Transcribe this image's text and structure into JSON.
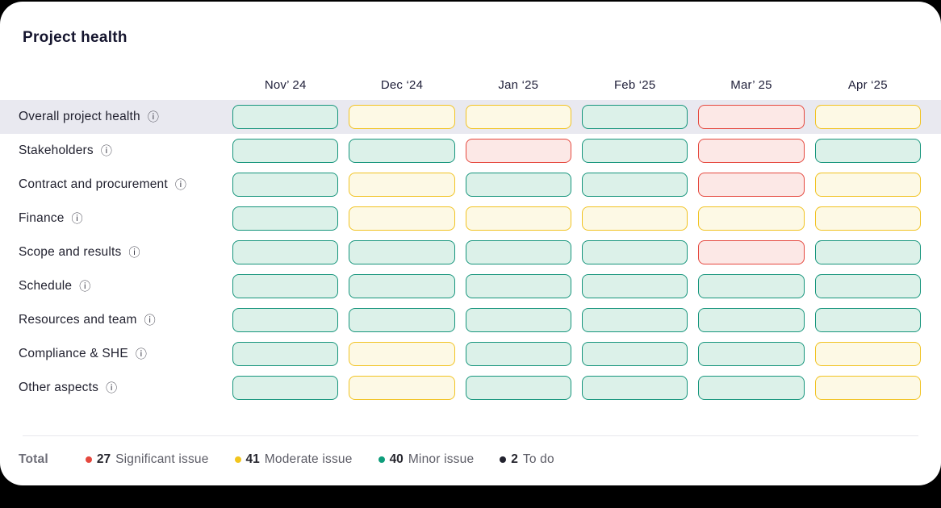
{
  "page": {
    "title": "Project health"
  },
  "columns": [
    "Nov’ 24",
    "Dec ‘24",
    "Jan ‘25",
    "Feb ‘25",
    "Mar’ 25",
    "Apr ‘25"
  ],
  "rows": [
    {
      "label": "Overall project health",
      "highlighted": true,
      "statuses": [
        "minor",
        "moderate",
        "moderate",
        "minor",
        "significant",
        "moderate"
      ]
    },
    {
      "label": "Stakeholders",
      "highlighted": false,
      "statuses": [
        "minor",
        "minor",
        "significant",
        "minor",
        "significant",
        "minor"
      ]
    },
    {
      "label": "Contract and procurement",
      "highlighted": false,
      "statuses": [
        "minor",
        "moderate",
        "minor",
        "minor",
        "significant",
        "moderate"
      ]
    },
    {
      "label": "Finance",
      "highlighted": false,
      "statuses": [
        "minor",
        "moderate",
        "moderate",
        "moderate",
        "moderate",
        "moderate"
      ]
    },
    {
      "label": "Scope and results",
      "highlighted": false,
      "statuses": [
        "minor",
        "minor",
        "minor",
        "minor",
        "significant",
        "minor"
      ]
    },
    {
      "label": "Schedule",
      "highlighted": false,
      "statuses": [
        "minor",
        "minor",
        "minor",
        "minor",
        "minor",
        "minor"
      ]
    },
    {
      "label": "Resources and team",
      "highlighted": false,
      "statuses": [
        "minor",
        "minor",
        "minor",
        "minor",
        "minor",
        "minor"
      ]
    },
    {
      "label": "Compliance & SHE",
      "highlighted": false,
      "statuses": [
        "minor",
        "moderate",
        "minor",
        "minor",
        "minor",
        "moderate"
      ]
    },
    {
      "label": "Other aspects",
      "highlighted": false,
      "statuses": [
        "minor",
        "moderate",
        "minor",
        "minor",
        "minor",
        "moderate"
      ]
    }
  ],
  "status_styles": {
    "minor": {
      "fill": "#dcf1e9",
      "border": "#16957c"
    },
    "moderate": {
      "fill": "#fdf9e5",
      "border": "#f1c322"
    },
    "significant": {
      "fill": "#fce8e6",
      "border": "#e5483e"
    },
    "todo": {
      "fill": "#eeeeee",
      "border": "#22222e"
    }
  },
  "info_icon_glyph": "ⓘ",
  "legend": {
    "total_label": "Total",
    "items": [
      {
        "count": "27",
        "label": "Significant  issue",
        "color": "#e5483e"
      },
      {
        "count": "41",
        "label": "Moderate issue",
        "color": "#f2c51d"
      },
      {
        "count": "40",
        "label": "Minor issue",
        "color": "#0e9d7b"
      },
      {
        "count": "2",
        "label": "To do",
        "color": "#22222e"
      }
    ]
  }
}
